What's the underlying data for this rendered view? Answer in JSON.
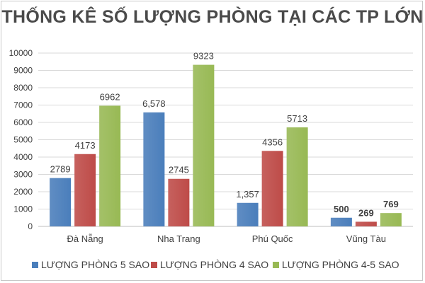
{
  "chart_data": {
    "type": "bar",
    "title": "THỐNG KÊ SỐ LƯỢNG PHÒNG TẠI CÁC TP LỚN",
    "categories": [
      "Đà Nẵng",
      "Nha Trang",
      "Phú Quốc",
      "Vũng Tàu"
    ],
    "series": [
      {
        "name": "LƯỢNG PHÒNG 5 SAO",
        "values": [
          2789,
          6578,
          1357,
          500
        ],
        "labels": [
          "2789",
          "6,578",
          "1,357",
          "500"
        ],
        "color": "#4a7ebb"
      },
      {
        "name": "LƯỢNG PHÒNG 4 SAO",
        "values": [
          4173,
          2745,
          4356,
          269
        ],
        "labels": [
          "4173",
          "2745",
          "4356",
          "269"
        ],
        "color": "#be4b48"
      },
      {
        "name": "LƯỢNG PHÒNG 4-5 SAO",
        "values": [
          6962,
          9323,
          5713,
          769
        ],
        "labels": [
          "6962",
          "9323",
          "5713",
          "769"
        ],
        "color": "#98b954"
      }
    ],
    "xlabel": "",
    "ylabel": "",
    "ylim": [
      0,
      10000
    ],
    "yticks": [
      "0",
      "1000",
      "2000",
      "3000",
      "4000",
      "5000",
      "6000",
      "7000",
      "8000",
      "9000",
      "10000"
    ],
    "grid": true,
    "legend_position": "bottom"
  }
}
